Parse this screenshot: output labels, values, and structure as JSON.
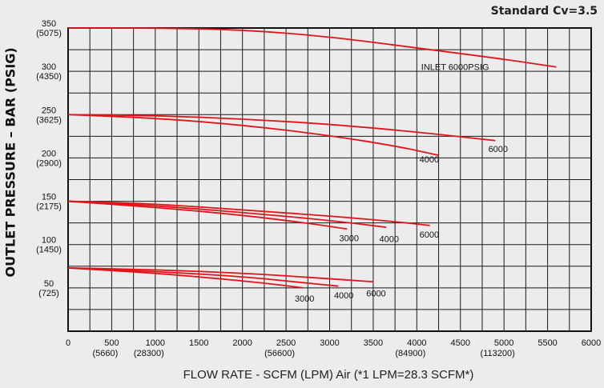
{
  "chart_data": {
    "type": "line",
    "title": "Standard Cv=3.5",
    "xlabel": "FLOW RATE - SCFM (LPM) Air (*1 LPM=28.3 SCFM*)",
    "ylabel": "OUTLET PRESSURE – BAR (PSIG)",
    "xlim": [
      0,
      6000
    ],
    "ylim": [
      0,
      350
    ],
    "grid": true,
    "x_ticks": [
      {
        "value": 0,
        "label": "0",
        "sub": ""
      },
      {
        "value": 500,
        "label": "500",
        "sub": "(5660)"
      },
      {
        "value": 1000,
        "label": "1000",
        "sub": "(28300)"
      },
      {
        "value": 1500,
        "label": "1500",
        "sub": ""
      },
      {
        "value": 2000,
        "label": "2000",
        "sub": ""
      },
      {
        "value": 2500,
        "label": "2500",
        "sub": "(56600)"
      },
      {
        "value": 3000,
        "label": "3000",
        "sub": ""
      },
      {
        "value": 3500,
        "label": "3500",
        "sub": ""
      },
      {
        "value": 4000,
        "label": "4000",
        "sub": "(84900)"
      },
      {
        "value": 4500,
        "label": "4500",
        "sub": ""
      },
      {
        "value": 5000,
        "label": "5000",
        "sub": "(113200)"
      },
      {
        "value": 5500,
        "label": "5500",
        "sub": ""
      },
      {
        "value": 6000,
        "label": "6000",
        "sub": ""
      }
    ],
    "y_ticks": [
      {
        "value": 50,
        "label": "50",
        "sub": "(725)"
      },
      {
        "value": 100,
        "label": "100",
        "sub": "(1450)"
      },
      {
        "value": 150,
        "label": "150",
        "sub": "(2175)"
      },
      {
        "value": 200,
        "label": "200",
        "sub": "(2900)"
      },
      {
        "value": 250,
        "label": "250",
        "sub": "(3625)"
      },
      {
        "value": 300,
        "label": "300",
        "sub": "(4350)"
      },
      {
        "value": 350,
        "label": "350",
        "sub": "(5075)"
      }
    ],
    "annotations": [
      {
        "text": "INLET 6000PSIG",
        "x": 4050,
        "y": 305
      }
    ],
    "series": [
      {
        "name": "",
        "label": "",
        "color": "#e0151a",
        "points": [
          [
            0,
            350
          ],
          [
            1000,
            350
          ],
          [
            2000,
            348
          ],
          [
            3000,
            340
          ],
          [
            4000,
            327
          ],
          [
            5000,
            314
          ],
          [
            5600,
            305
          ]
        ]
      },
      {
        "name": "",
        "label": "6000",
        "color": "#e0151a",
        "label_pos": [
          4820,
          207
        ],
        "points": [
          [
            0,
            250
          ],
          [
            1000,
            249
          ],
          [
            2000,
            245
          ],
          [
            3000,
            239
          ],
          [
            4000,
            230
          ],
          [
            4900,
            220
          ]
        ]
      },
      {
        "name": "",
        "label": "4000",
        "color": "#e0151a",
        "label_pos": [
          4030,
          195
        ],
        "points": [
          [
            0,
            250
          ],
          [
            1000,
            246
          ],
          [
            2000,
            238
          ],
          [
            3000,
            226
          ],
          [
            3800,
            213
          ],
          [
            4250,
            203
          ]
        ]
      },
      {
        "name": "",
        "label": "6000",
        "color": "#e0151a",
        "label_pos": [
          4030,
          108
        ],
        "points": [
          [
            0,
            150
          ],
          [
            1000,
            147
          ],
          [
            2000,
            140
          ],
          [
            3000,
            133
          ],
          [
            3800,
            126
          ],
          [
            4150,
            122
          ]
        ]
      },
      {
        "name": "",
        "label": "4000",
        "color": "#e0151a",
        "label_pos": [
          3570,
          103
        ],
        "points": [
          [
            0,
            150
          ],
          [
            1000,
            145
          ],
          [
            2000,
            137
          ],
          [
            3000,
            128
          ],
          [
            3650,
            120
          ]
        ]
      },
      {
        "name": "",
        "label": "3000",
        "color": "#e0151a",
        "label_pos": [
          3110,
          104
        ],
        "points": [
          [
            0,
            150
          ],
          [
            1000,
            143
          ],
          [
            2000,
            134
          ],
          [
            2800,
            124
          ],
          [
            3200,
            118
          ]
        ]
      },
      {
        "name": "",
        "label": "6000",
        "color": "#e0151a",
        "label_pos": [
          3420,
          40
        ],
        "points": [
          [
            0,
            73
          ],
          [
            1000,
            71
          ],
          [
            2000,
            67
          ],
          [
            2800,
            62
          ],
          [
            3500,
            57
          ]
        ]
      },
      {
        "name": "",
        "label": "4000",
        "color": "#e0151a",
        "label_pos": [
          3050,
          38
        ],
        "points": [
          [
            0,
            73
          ],
          [
            1000,
            69
          ],
          [
            2000,
            63
          ],
          [
            2600,
            57
          ],
          [
            3100,
            52
          ]
        ]
      },
      {
        "name": "",
        "label": "3000",
        "color": "#e0151a",
        "label_pos": [
          2600,
          34
        ],
        "points": [
          [
            0,
            73
          ],
          [
            1000,
            67
          ],
          [
            1800,
            60
          ],
          [
            2300,
            55
          ],
          [
            2700,
            50
          ]
        ]
      }
    ]
  }
}
